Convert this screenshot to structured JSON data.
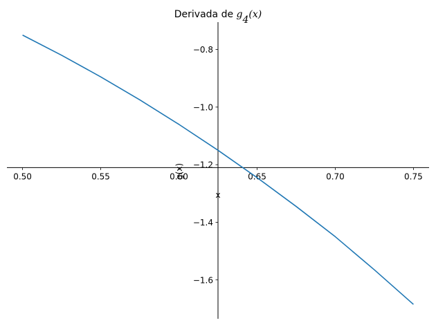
{
  "chart_data": {
    "type": "line",
    "title": "Derivada de ",
    "title_math": "g",
    "title_math_sub": "4",
    "title_math_arg": "(x)",
    "xlabel": "x",
    "ylabel": "g(x)",
    "xlim": [
      0.49,
      0.76
    ],
    "ylim": [
      -1.735,
      -0.705
    ],
    "spines": "centered",
    "x_axis_at_y": -1.21,
    "y_axis_at_x": 0.625,
    "grid": false,
    "x_ticks": [
      0.5,
      0.55,
      0.6,
      0.65,
      0.7,
      0.75
    ],
    "x_tick_labels": [
      "0.50",
      "0.55",
      "0.60",
      "0.65",
      "0.70",
      "0.75"
    ],
    "y_ticks": [
      -0.8,
      -1.0,
      -1.2,
      -1.4,
      -1.6
    ],
    "y_tick_labels": [
      "−0.8",
      "−1.0",
      "−1.2",
      "−1.4",
      "−1.6"
    ],
    "series": [
      {
        "color": "#1f77b4",
        "x": [
          0.5,
          0.525,
          0.55,
          0.575,
          0.6,
          0.625,
          0.65,
          0.675,
          0.7,
          0.725,
          0.75
        ],
        "y": [
          -0.75,
          -0.82,
          -0.895,
          -0.975,
          -1.06,
          -1.15,
          -1.245,
          -1.345,
          -1.45,
          -1.565,
          -1.685
        ]
      }
    ]
  }
}
